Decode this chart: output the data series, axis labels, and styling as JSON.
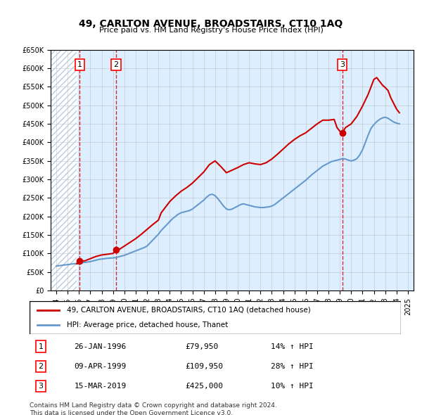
{
  "title": "49, CARLTON AVENUE, BROADSTAIRS, CT10 1AQ",
  "subtitle": "Price paid vs. HM Land Registry's House Price Index (HPI)",
  "xlabel": "",
  "ylabel": "",
  "ylim": [
    0,
    650000
  ],
  "xlim_start": 1993.5,
  "xlim_end": 2025.5,
  "yticks": [
    0,
    50000,
    100000,
    150000,
    200000,
    250000,
    300000,
    350000,
    400000,
    450000,
    500000,
    550000,
    600000,
    650000
  ],
  "ytick_labels": [
    "£0",
    "£50K",
    "£100K",
    "£150K",
    "£200K",
    "£250K",
    "£300K",
    "£350K",
    "£400K",
    "£450K",
    "£500K",
    "£550K",
    "£600K",
    "£650K"
  ],
  "xticks": [
    1994,
    1995,
    1996,
    1997,
    1998,
    1999,
    2000,
    2001,
    2002,
    2003,
    2004,
    2005,
    2006,
    2007,
    2008,
    2009,
    2010,
    2011,
    2012,
    2013,
    2014,
    2015,
    2016,
    2017,
    2018,
    2019,
    2020,
    2021,
    2022,
    2023,
    2024,
    2025
  ],
  "sale_dates": [
    1996.07,
    1999.27,
    2019.21
  ],
  "sale_prices": [
    79950,
    109950,
    425000
  ],
  "sale_labels": [
    "1",
    "2",
    "3"
  ],
  "sale_info": [
    {
      "label": "1",
      "date": "26-JAN-1996",
      "price": "£79,950",
      "hpi": "14% ↑ HPI"
    },
    {
      "label": "2",
      "date": "09-APR-1999",
      "price": "£109,950",
      "hpi": "28% ↑ HPI"
    },
    {
      "label": "3",
      "date": "15-MAR-2019",
      "price": "£425,000",
      "hpi": "10% ↑ HPI"
    }
  ],
  "legend_line1": "49, CARLTON AVENUE, BROADSTAIRS, CT10 1AQ (detached house)",
  "legend_line2": "HPI: Average price, detached house, Thanet",
  "line_color_red": "#cc0000",
  "line_color_blue": "#6699cc",
  "bg_color": "#ddeeff",
  "hatch_color": "#bbccdd",
  "grid_color": "#aaaaaa",
  "footnote": "Contains HM Land Registry data © Crown copyright and database right 2024.\nThis data is licensed under the Open Government Licence v3.0.",
  "hpi_years": [
    1994.0,
    1994.25,
    1994.5,
    1994.75,
    1995.0,
    1995.25,
    1995.5,
    1995.75,
    1996.0,
    1996.25,
    1996.5,
    1996.75,
    1997.0,
    1997.25,
    1997.5,
    1997.75,
    1998.0,
    1998.25,
    1998.5,
    1998.75,
    1999.0,
    1999.25,
    1999.5,
    1999.75,
    2000.0,
    2000.25,
    2000.5,
    2000.75,
    2001.0,
    2001.25,
    2001.5,
    2001.75,
    2002.0,
    2002.25,
    2002.5,
    2002.75,
    2003.0,
    2003.25,
    2003.5,
    2003.75,
    2004.0,
    2004.25,
    2004.5,
    2004.75,
    2005.0,
    2005.25,
    2005.5,
    2005.75,
    2006.0,
    2006.25,
    2006.5,
    2006.75,
    2007.0,
    2007.25,
    2007.5,
    2007.75,
    2008.0,
    2008.25,
    2008.5,
    2008.75,
    2009.0,
    2009.25,
    2009.5,
    2009.75,
    2010.0,
    2010.25,
    2010.5,
    2010.75,
    2011.0,
    2011.25,
    2011.5,
    2011.75,
    2012.0,
    2012.25,
    2012.5,
    2012.75,
    2013.0,
    2013.25,
    2013.5,
    2013.75,
    2014.0,
    2014.25,
    2014.5,
    2014.75,
    2015.0,
    2015.25,
    2015.5,
    2015.75,
    2016.0,
    2016.25,
    2016.5,
    2016.75,
    2017.0,
    2017.25,
    2017.5,
    2017.75,
    2018.0,
    2018.25,
    2018.5,
    2018.75,
    2019.0,
    2019.25,
    2019.5,
    2019.75,
    2020.0,
    2020.25,
    2020.5,
    2020.75,
    2021.0,
    2021.25,
    2021.5,
    2021.75,
    2022.0,
    2022.25,
    2022.5,
    2022.75,
    2023.0,
    2023.25,
    2023.5,
    2023.75,
    2024.0,
    2024.25
  ],
  "hpi_values": [
    66000,
    67000,
    68000,
    69000,
    70000,
    71000,
    72000,
    73000,
    74000,
    75000,
    76000,
    77000,
    78000,
    80000,
    82000,
    84000,
    85000,
    86000,
    87000,
    87500,
    88000,
    89000,
    91000,
    93000,
    95000,
    98000,
    101000,
    104000,
    107000,
    110000,
    113000,
    116000,
    120000,
    128000,
    136000,
    144000,
    152000,
    162000,
    170000,
    178000,
    186000,
    194000,
    200000,
    206000,
    210000,
    212000,
    214000,
    216000,
    220000,
    226000,
    232000,
    238000,
    244000,
    252000,
    258000,
    260000,
    256000,
    248000,
    238000,
    228000,
    220000,
    218000,
    220000,
    224000,
    228000,
    232000,
    234000,
    232000,
    230000,
    228000,
    226000,
    225000,
    224000,
    224000,
    225000,
    226000,
    228000,
    232000,
    238000,
    244000,
    250000,
    256000,
    262000,
    268000,
    274000,
    280000,
    286000,
    292000,
    298000,
    305000,
    312000,
    318000,
    324000,
    330000,
    336000,
    340000,
    344000,
    348000,
    350000,
    352000,
    354000,
    356000,
    355000,
    352000,
    350000,
    352000,
    356000,
    366000,
    380000,
    400000,
    420000,
    438000,
    448000,
    456000,
    462000,
    466000,
    468000,
    465000,
    460000,
    455000,
    452000,
    450000
  ],
  "red_years": [
    1995.8,
    1996.0,
    1996.07,
    1996.5,
    1997.0,
    1997.5,
    1998.0,
    1998.5,
    1999.0,
    1999.27,
    1999.5,
    2000.0,
    2000.5,
    2001.0,
    2001.5,
    2002.0,
    2002.5,
    2003.0,
    2003.25,
    2003.5,
    2004.0,
    2004.5,
    2005.0,
    2005.5,
    2006.0,
    2006.5,
    2007.0,
    2007.5,
    2008.0,
    2008.5,
    2009.0,
    2009.5,
    2010.0,
    2010.5,
    2011.0,
    2011.5,
    2012.0,
    2012.5,
    2013.0,
    2013.5,
    2014.0,
    2014.5,
    2015.0,
    2015.5,
    2016.0,
    2016.5,
    2017.0,
    2017.5,
    2018.0,
    2018.5,
    2018.75,
    2019.0,
    2019.21,
    2019.5,
    2020.0,
    2020.5,
    2021.0,
    2021.5,
    2022.0,
    2022.25,
    2022.5,
    2022.75,
    2023.0,
    2023.25,
    2023.5,
    2023.75,
    2024.0,
    2024.25
  ],
  "red_values": [
    72000,
    74000,
    79950,
    80000,
    86000,
    92000,
    96000,
    98000,
    100000,
    109950,
    110000,
    120000,
    130000,
    140000,
    152000,
    165000,
    178000,
    190000,
    210000,
    220000,
    240000,
    255000,
    268000,
    278000,
    290000,
    305000,
    320000,
    340000,
    350000,
    335000,
    318000,
    325000,
    332000,
    340000,
    345000,
    342000,
    340000,
    345000,
    355000,
    368000,
    382000,
    396000,
    408000,
    418000,
    426000,
    438000,
    450000,
    460000,
    460000,
    462000,
    440000,
    430000,
    425000,
    440000,
    450000,
    470000,
    498000,
    530000,
    570000,
    575000,
    565000,
    555000,
    548000,
    540000,
    520000,
    505000,
    490000,
    480000
  ]
}
